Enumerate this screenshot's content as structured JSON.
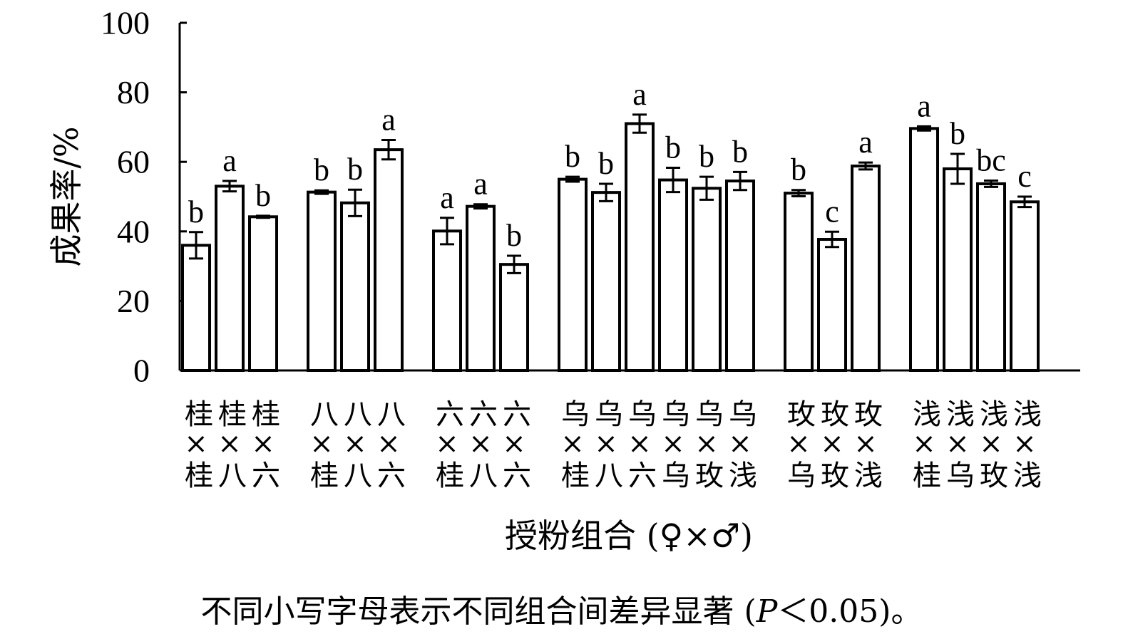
{
  "chart_data": {
    "type": "bar",
    "title": "",
    "ylabel": "成果率/%",
    "xlabel": "授粉组合 (♀×♂)",
    "ylim": [
      0,
      100
    ],
    "yticks": [
      0,
      20,
      40,
      60,
      80,
      100
    ],
    "groups": [
      {
        "bars": [
          {
            "label": "桂×桂",
            "value": 36.0,
            "error": 3.8,
            "sig": "b"
          },
          {
            "label": "桂×八",
            "value": 53.0,
            "error": 1.5,
            "sig": "a"
          },
          {
            "label": "桂×六",
            "value": 44.2,
            "error": 0.3,
            "sig": "b"
          }
        ]
      },
      {
        "bars": [
          {
            "label": "八×桂",
            "value": 51.3,
            "error": 0.5,
            "sig": "b"
          },
          {
            "label": "八×八",
            "value": 48.2,
            "error": 3.8,
            "sig": "b"
          },
          {
            "label": "八×六",
            "value": 63.5,
            "error": 2.8,
            "sig": "a"
          }
        ]
      },
      {
        "bars": [
          {
            "label": "六×桂",
            "value": 40.1,
            "error": 3.8,
            "sig": "a"
          },
          {
            "label": "六×八",
            "value": 47.2,
            "error": 0.6,
            "sig": "a"
          },
          {
            "label": "六×六",
            "value": 30.5,
            "error": 2.5,
            "sig": "b"
          }
        ]
      },
      {
        "bars": [
          {
            "label": "乌×桂",
            "value": 55.0,
            "error": 0.7,
            "sig": "b"
          },
          {
            "label": "乌×八",
            "value": 51.2,
            "error": 2.5,
            "sig": "b"
          },
          {
            "label": "乌×六",
            "value": 71.0,
            "error": 2.6,
            "sig": "a"
          },
          {
            "label": "乌×乌",
            "value": 54.8,
            "error": 3.5,
            "sig": "b"
          },
          {
            "label": "乌×玫",
            "value": 52.4,
            "error": 3.3,
            "sig": "b"
          },
          {
            "label": "乌×浅",
            "value": 54.5,
            "error": 2.6,
            "sig": "b"
          }
        ]
      },
      {
        "bars": [
          {
            "label": "玫×乌",
            "value": 51.0,
            "error": 0.9,
            "sig": "b"
          },
          {
            "label": "玫×玫",
            "value": 37.7,
            "error": 2.2,
            "sig": "c"
          },
          {
            "label": "玫×浅",
            "value": 58.8,
            "error": 1.0,
            "sig": "a"
          }
        ]
      },
      {
        "bars": [
          {
            "label": "浅×桂",
            "value": 69.6,
            "error": 0.6,
            "sig": "a"
          },
          {
            "label": "浅×乌",
            "value": 58.0,
            "error": 4.3,
            "sig": "b"
          },
          {
            "label": "浅×玫",
            "value": 53.7,
            "error": 0.9,
            "sig": "bc"
          },
          {
            "label": "浅×浅",
            "value": 48.5,
            "error": 1.5,
            "sig": "c"
          }
        ]
      }
    ],
    "note": {
      "prefix": "不同小写字母表示不同组合间差异显著 (",
      "p_symbol": "P",
      "suffix": "＜0.05)。"
    }
  }
}
